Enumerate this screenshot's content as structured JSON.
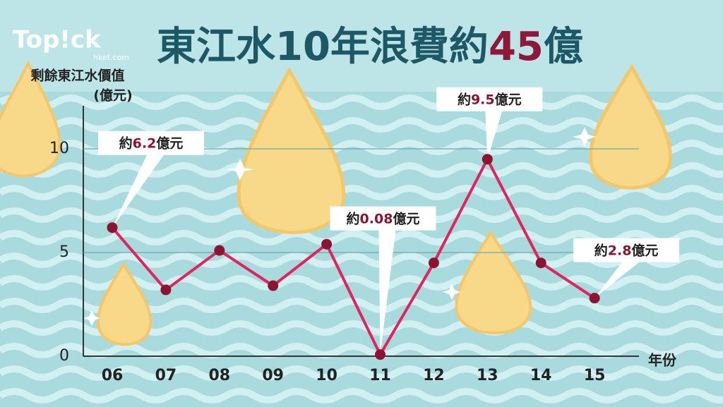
{
  "chart_data": {
    "type": "line",
    "title": [
      {
        "text": "東江水10年浪費約",
        "color": "#1d5866"
      },
      {
        "text": "45",
        "color": "#8e1838"
      },
      {
        "text": "億",
        "color": "#1d5866"
      }
    ],
    "logo": "Top!ck",
    "logo_sub": "hket.com",
    "y_label": [
      "剩餘東江水價值",
      "(億元)"
    ],
    "x_label": "年份",
    "categories": [
      "06",
      "07",
      "08",
      "09",
      "10",
      "11",
      "12",
      "13",
      "14",
      "15"
    ],
    "values": [
      6.2,
      3.2,
      5.1,
      3.4,
      5.4,
      0.08,
      4.5,
      9.5,
      4.5,
      2.8
    ],
    "value_labels": [
      "約6.2億元",
      null,
      null,
      null,
      null,
      "約0.08億元",
      null,
      "約9.5億元",
      null,
      "約2.8億元"
    ],
    "color": "#e0245e",
    "marker_color": "#8b1530",
    "ylim": [
      0,
      12
    ],
    "yticks": [
      0,
      5,
      10
    ],
    "grid": true
  }
}
